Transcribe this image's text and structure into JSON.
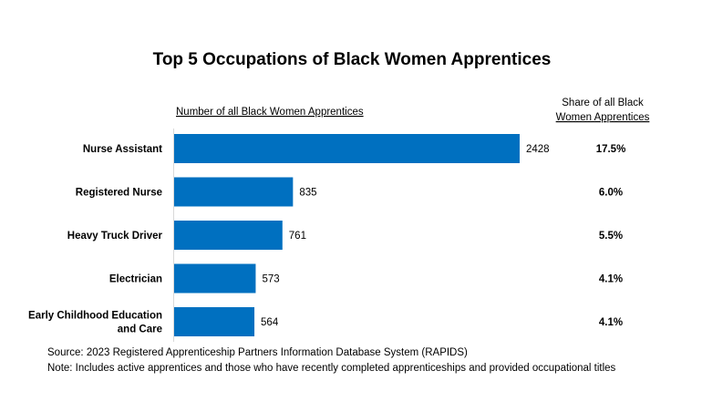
{
  "chart_data": {
    "type": "bar",
    "orientation": "horizontal",
    "title": "Top 5 Occupations of Black Women Apprentices",
    "value_header": "Number  of all Black Women Apprentices",
    "share_header": [
      "Share of all Black",
      "Women Apprentices"
    ],
    "categories": [
      [
        "Nurse Assistant"
      ],
      [
        "Registered Nurse"
      ],
      [
        "Heavy Truck Driver"
      ],
      [
        "Electrician"
      ],
      [
        "Early Childhood Education",
        "and Care"
      ]
    ],
    "values": [
      2428,
      835,
      761,
      573,
      564
    ],
    "shares": [
      "17.5%",
      "6.0%",
      "5.5%",
      "4.1%",
      "4.1%"
    ],
    "bar_color": "#0070C0",
    "grid": false
  },
  "footnotes": {
    "source": "Source:  2023 Registered Apprenticeship Partners Information Database System (RAPIDS)",
    "note": "Note:  Includes active apprentices and those who have recently completed apprenticeships and provided occupational titles"
  }
}
